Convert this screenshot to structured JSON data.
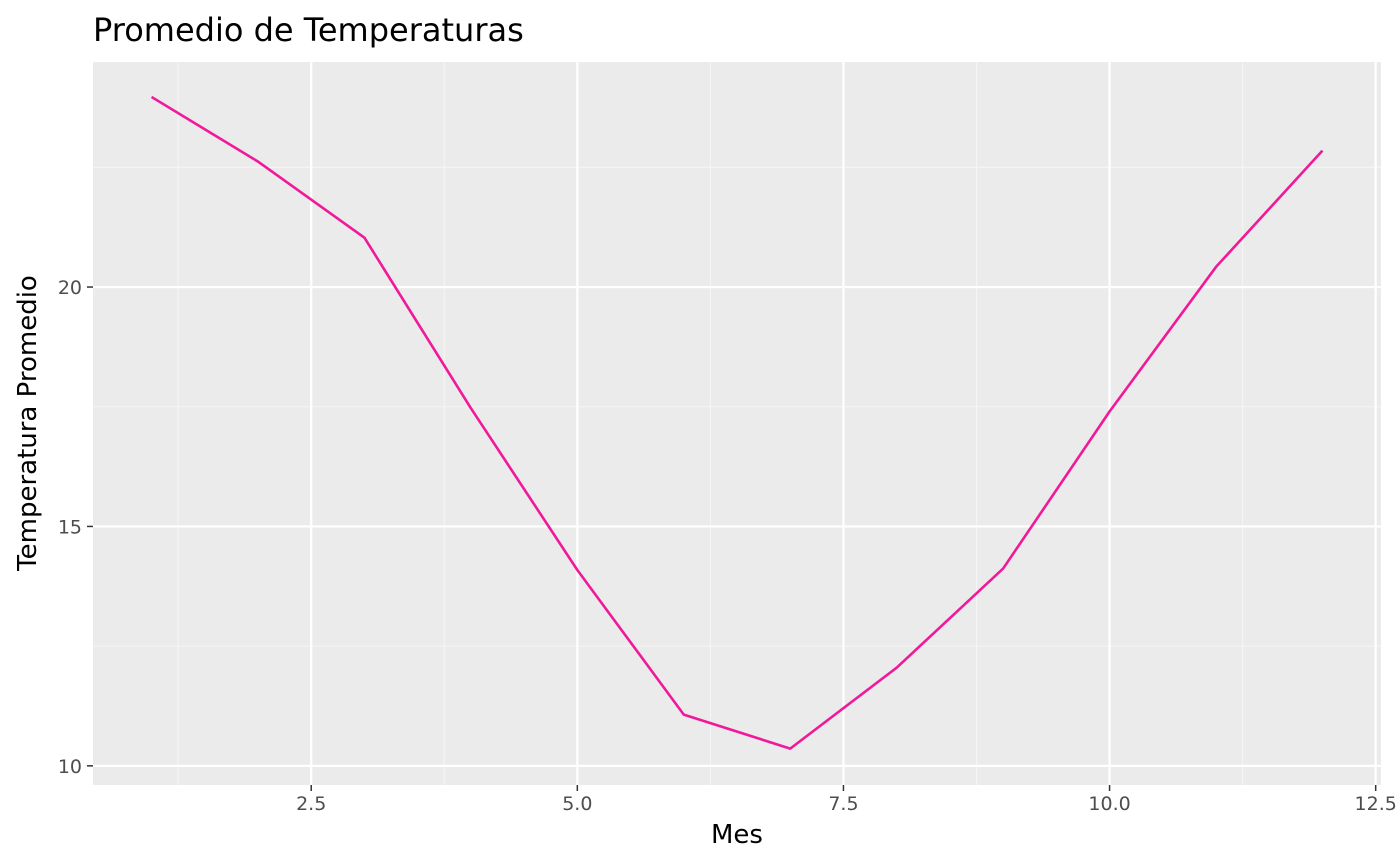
{
  "chart_data": {
    "type": "line",
    "title": "Promedio de Temperaturas",
    "xlabel": "Mes",
    "ylabel": "Temperatura Promedio",
    "xlim": [
      0.45,
      12.55
    ],
    "ylim": [
      9.6,
      24.7
    ],
    "x_ticks": [
      2.5,
      5.0,
      7.5,
      10.0,
      12.5
    ],
    "x_tick_labels": [
      "2.5",
      "5.0",
      "7.5",
      "10.0",
      "12.5"
    ],
    "y_ticks": [
      10,
      15,
      20
    ],
    "y_tick_labels": [
      "10",
      "15",
      "20"
    ],
    "grid": true,
    "legend": "none",
    "series": [
      {
        "color": "#f0199a",
        "x": [
          1,
          2,
          3,
          4,
          5,
          6,
          7,
          8,
          9,
          10,
          11,
          12
        ],
        "values": [
          23.97,
          22.62,
          21.03,
          17.47,
          14.09,
          11.07,
          10.36,
          12.05,
          14.12,
          17.4,
          20.42,
          22.85
        ]
      }
    ],
    "colors": {
      "panel_background": "#ebebeb",
      "grid_major": "#ffffff",
      "grid_minor": "#f5f5f5",
      "tick_text": "#4d4d4d",
      "tick_mark": "#333333"
    }
  }
}
